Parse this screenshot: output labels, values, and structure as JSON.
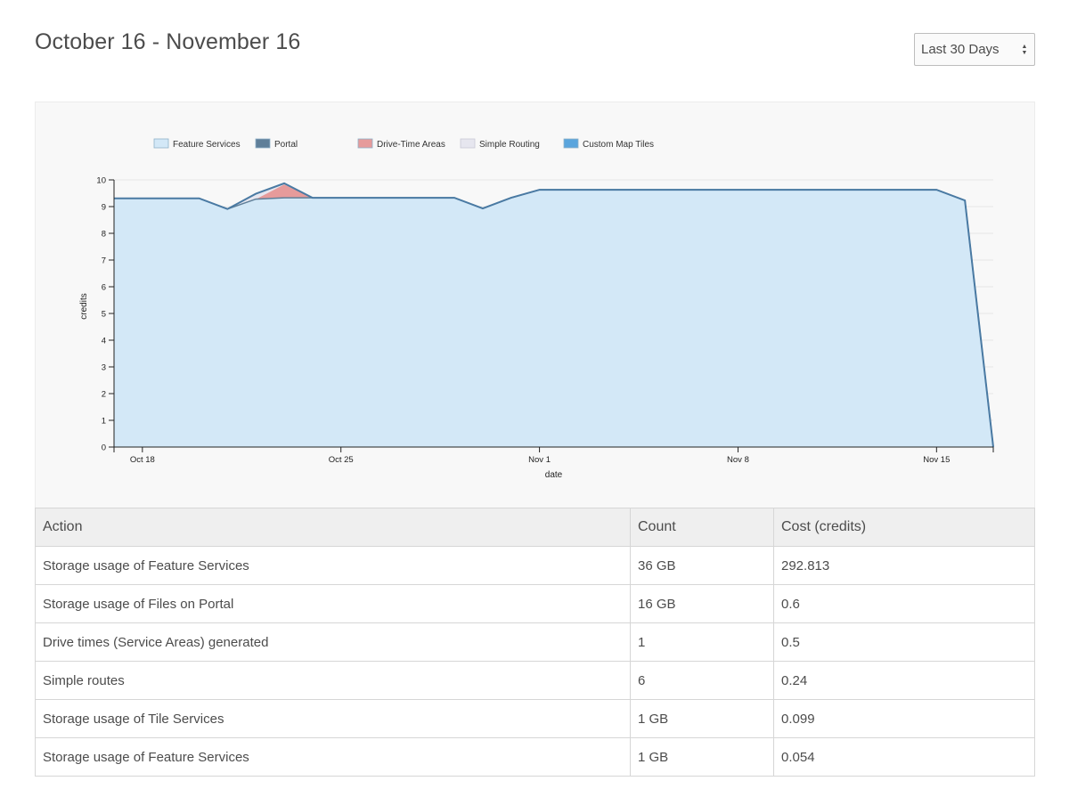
{
  "header": {
    "title": "October 16 - November 16",
    "range_select": {
      "value": "Last 30 Days"
    }
  },
  "chart_data": {
    "type": "area",
    "xlabel": "date",
    "ylabel": "credits",
    "ylim": [
      0,
      10
    ],
    "y_ticks": [
      "0",
      "1",
      "2",
      "3",
      "4",
      "5",
      "6",
      "7",
      "8",
      "9",
      "10"
    ],
    "x_ticks": [
      "Oct 18",
      "Oct 25",
      "Nov 1",
      "Nov 8",
      "Nov 15"
    ],
    "legend_position": "top-left",
    "x": [
      "Oct 17",
      "Oct 18",
      "Oct 19",
      "Oct 20",
      "Oct 21",
      "Oct 22",
      "Oct 23",
      "Oct 24",
      "Oct 25",
      "Oct 26",
      "Oct 27",
      "Oct 28",
      "Oct 29",
      "Oct 30",
      "Oct 31",
      "Nov 1",
      "Nov 2",
      "Nov 3",
      "Nov 4",
      "Nov 5",
      "Nov 6",
      "Nov 7",
      "Nov 8",
      "Nov 9",
      "Nov 10",
      "Nov 11",
      "Nov 12",
      "Nov 13",
      "Nov 14",
      "Nov 15",
      "Nov 16",
      "Nov 17"
    ],
    "series": [
      {
        "name": "Feature Services",
        "color": "#d3e8f7",
        "values": [
          9.3,
          9.3,
          9.3,
          9.3,
          8.9,
          9.27,
          9.32,
          9.32,
          9.32,
          9.32,
          9.32,
          9.32,
          9.32,
          8.92,
          9.32,
          9.62,
          9.62,
          9.62,
          9.62,
          9.62,
          9.62,
          9.62,
          9.62,
          9.62,
          9.62,
          9.62,
          9.62,
          9.62,
          9.62,
          9.62,
          9.22,
          0
        ]
      },
      {
        "name": "Portal",
        "color": "#5f7f99",
        "values": [
          0.01,
          0.01,
          0.01,
          0.01,
          0.01,
          0.01,
          0.01,
          0.01,
          0.01,
          0.01,
          0.01,
          0.01,
          0.01,
          0.01,
          0.01,
          0.01,
          0.01,
          0.01,
          0.01,
          0.01,
          0.01,
          0.01,
          0.01,
          0.01,
          0.01,
          0.01,
          0.01,
          0.01,
          0.01,
          0.01,
          0.01,
          0
        ]
      },
      {
        "name": "Drive-Time Areas",
        "color": "#e69b9b",
        "values": [
          0,
          0,
          0,
          0,
          0,
          0,
          0.5,
          0,
          0,
          0,
          0,
          0,
          0,
          0,
          0,
          0,
          0,
          0,
          0,
          0,
          0,
          0,
          0,
          0,
          0,
          0,
          0,
          0,
          0,
          0,
          0,
          0
        ]
      },
      {
        "name": "Simple Routing",
        "color": "#e6e6ef",
        "values": [
          0,
          0,
          0,
          0,
          0,
          0.2,
          0.04,
          0,
          0,
          0,
          0,
          0,
          0,
          0,
          0,
          0,
          0,
          0,
          0,
          0,
          0,
          0,
          0,
          0,
          0,
          0,
          0,
          0,
          0,
          0,
          0,
          0
        ]
      },
      {
        "name": "Custom Map Tiles",
        "color": "#5aa5dd",
        "values": [
          0,
          0,
          0,
          0,
          0,
          0,
          0,
          0,
          0,
          0,
          0,
          0,
          0,
          0,
          0,
          0,
          0,
          0,
          0,
          0,
          0,
          0,
          0,
          0,
          0,
          0,
          0,
          0,
          0,
          0,
          0,
          0
        ]
      }
    ],
    "outline_color": "#4a7aa3"
  },
  "table": {
    "headers": [
      "Action",
      "Count",
      "Cost (credits)"
    ],
    "rows": [
      [
        "Storage usage of Feature Services",
        "36 GB",
        "292.813"
      ],
      [
        "Storage usage of Files on Portal",
        "16 GB",
        "0.6"
      ],
      [
        "Drive times (Service Areas) generated",
        "1",
        "0.5"
      ],
      [
        "Simple routes",
        "6",
        "0.24"
      ],
      [
        "Storage usage of Tile Services",
        "1 GB",
        "0.099"
      ],
      [
        "Storage usage of Feature Services",
        "1 GB",
        "0.054"
      ]
    ]
  }
}
